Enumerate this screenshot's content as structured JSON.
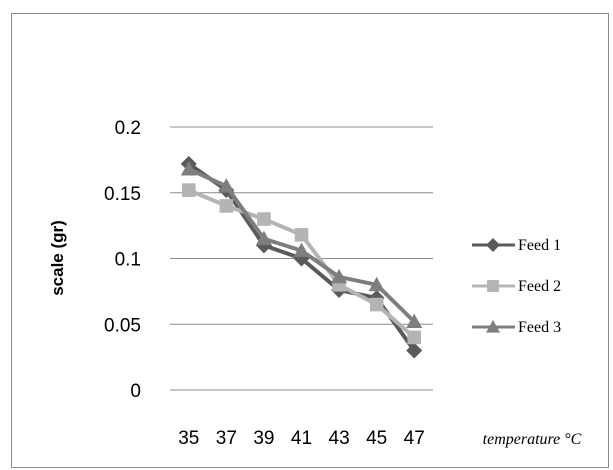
{
  "chart_data": {
    "type": "line",
    "categories": [
      "35",
      "37",
      "39",
      "41",
      "43",
      "45",
      "47"
    ],
    "ylabel": "scale (gr)",
    "xlabel": "temperature °C",
    "ylim": [
      0,
      0.2
    ],
    "yticks": [
      "0",
      "0.05",
      "0.1",
      "0.15",
      "0.2"
    ],
    "grid": "horizontal",
    "legend_position": "right",
    "series": [
      {
        "name": "Feed 1",
        "marker": "diamond",
        "color": "#5a5a5a",
        "values": [
          0.172,
          0.152,
          0.11,
          0.1,
          0.076,
          0.07,
          0.03
        ]
      },
      {
        "name": "Feed 2",
        "marker": "square",
        "color": "#b4b4b4",
        "values": [
          0.152,
          0.14,
          0.13,
          0.118,
          0.08,
          0.065,
          0.04
        ]
      },
      {
        "name": "Feed 3",
        "marker": "triangle",
        "color": "#7e7e7e",
        "values": [
          0.168,
          0.155,
          0.115,
          0.106,
          0.086,
          0.08,
          0.052
        ]
      }
    ]
  }
}
